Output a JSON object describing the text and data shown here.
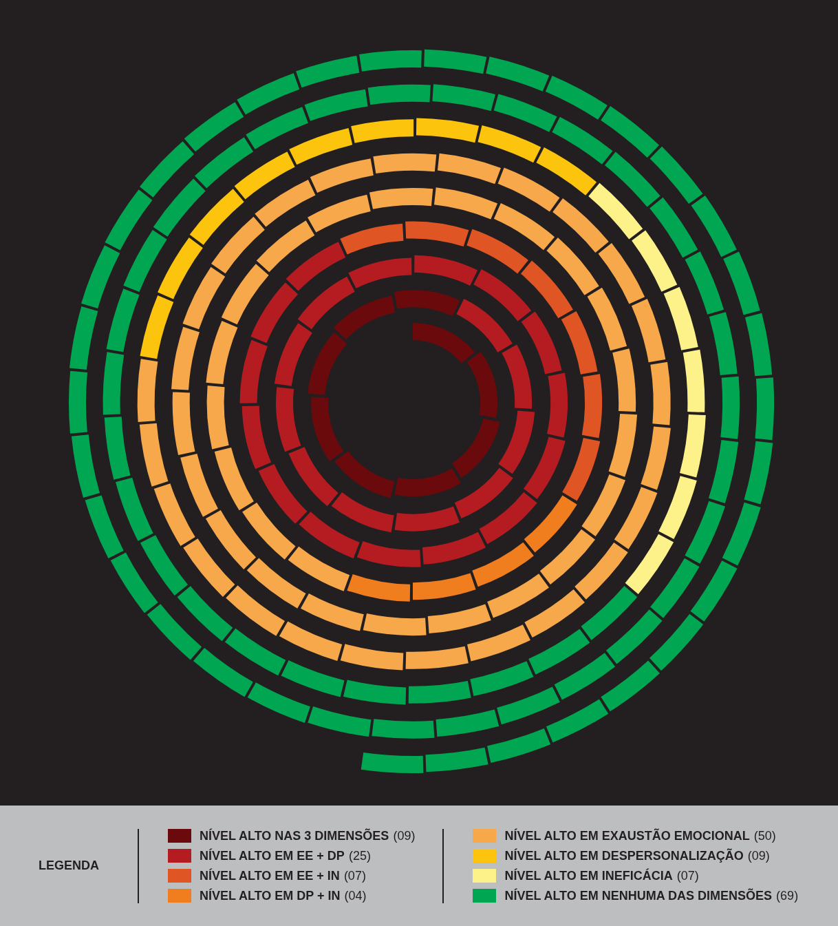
{
  "chart_data": {
    "type": "other",
    "legend_title": "LEGENDA",
    "categories": [
      "NÍVEL ALTO NAS 3 DIMENSÕES",
      "NÍVEL ALTO EM EE + DP",
      "NÍVEL ALTO EM EE + IN",
      "NÍVEL ALTO EM DP + IN",
      "NÍVEL ALTO EM EXAUSTÃO EMOCIONAL",
      "NÍVEL ALTO EM DESPERSONALIZAÇÃO",
      "NÍVEL ALTO EM INEFICÁCIA",
      "NÍVEL ALTO EM NENHUMA DAS DIMENSÕES"
    ],
    "values": [
      9,
      25,
      7,
      4,
      50,
      9,
      7,
      69
    ],
    "value_labels": [
      "(09)",
      "(25)",
      "(07)",
      "(04)",
      "(50)",
      "(09)",
      "(07)",
      "(69)"
    ],
    "colors": [
      "#6b0a0c",
      "#b51c22",
      "#e05524",
      "#f07d1e",
      "#f7a84b",
      "#fcc40c",
      "#fdf28a",
      "#00a651"
    ]
  }
}
